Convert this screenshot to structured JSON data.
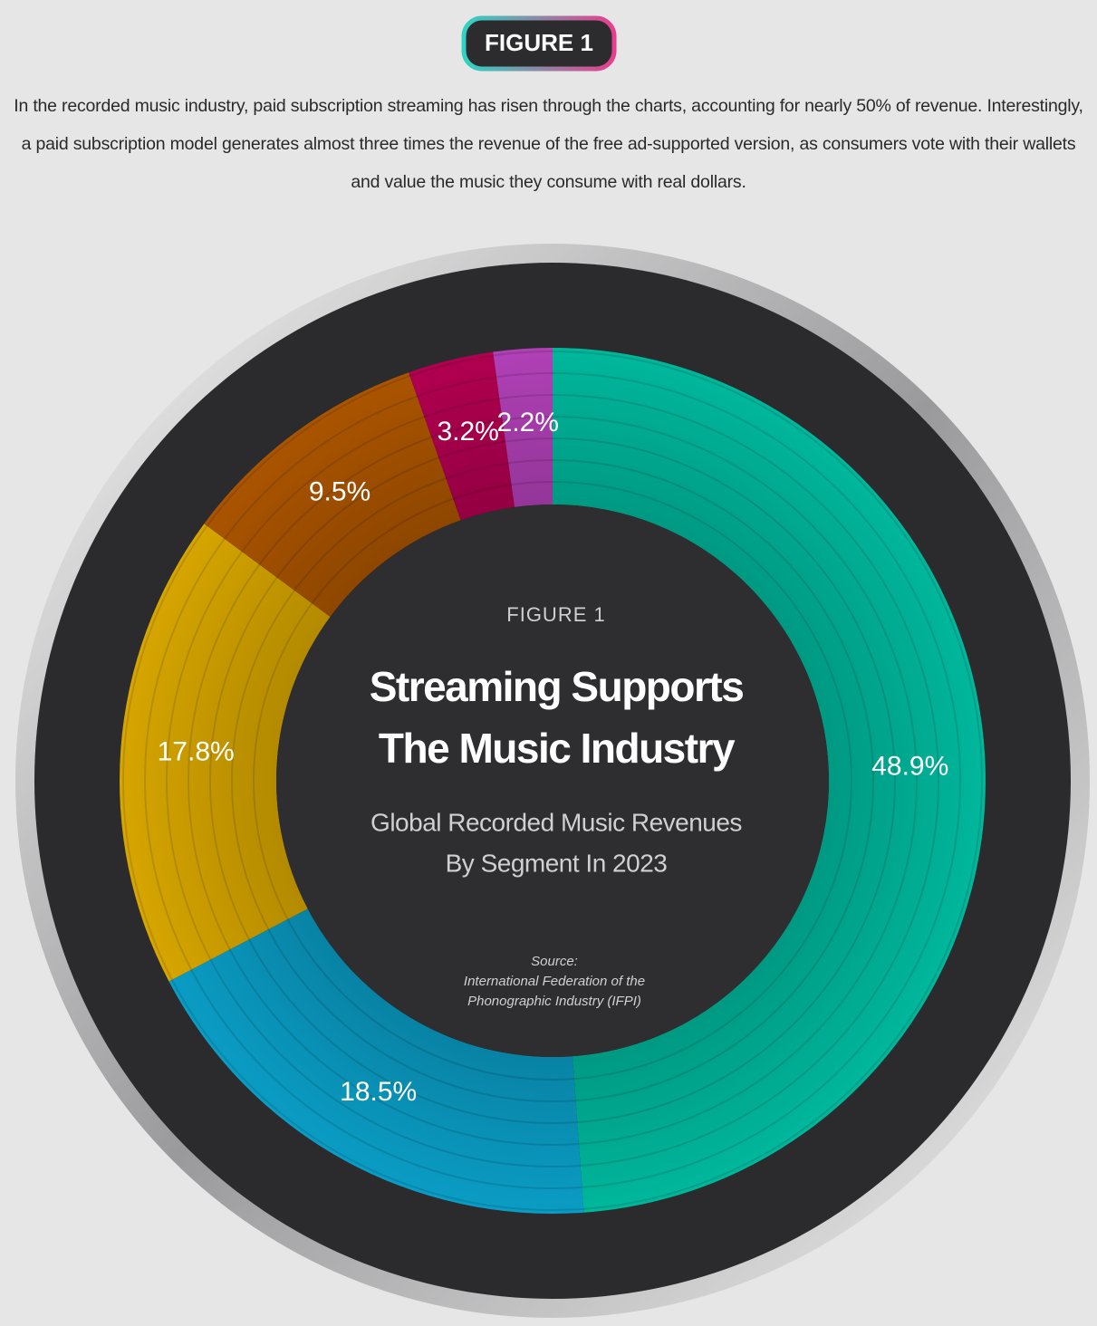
{
  "header": {
    "badge": "FIGURE 1",
    "description": "In the recorded music industry, paid subscription streaming has risen through the charts, accounting for nearly 50% of revenue. Interestingly, a paid subscription model generates almost three times the revenue of the free ad-supported version, as consumers vote with their wallets and value the music they consume with real dollars."
  },
  "chart_data": {
    "type": "pie",
    "figure_label": "FIGURE 1",
    "title": [
      "Streaming Supports",
      "The Music Industry"
    ],
    "subtitle": [
      "Global Recorded Music Revenues",
      "By Segment In 2023"
    ],
    "source": [
      "Source:",
      "International Federation of the",
      "Phonographic Industry (IFPI)"
    ],
    "values": [
      48.9,
      18.5,
      17.8,
      9.5,
      3.2,
      2.2
    ],
    "value_labels": [
      "48.9%",
      "18.5%",
      "17.8%",
      "9.5%",
      "3.2%",
      "2.2%"
    ],
    "colors": [
      "#00b79c",
      "#0a9cc4",
      "#d6a500",
      "#aa5400",
      "#b0004f",
      "#b040b6"
    ]
  }
}
